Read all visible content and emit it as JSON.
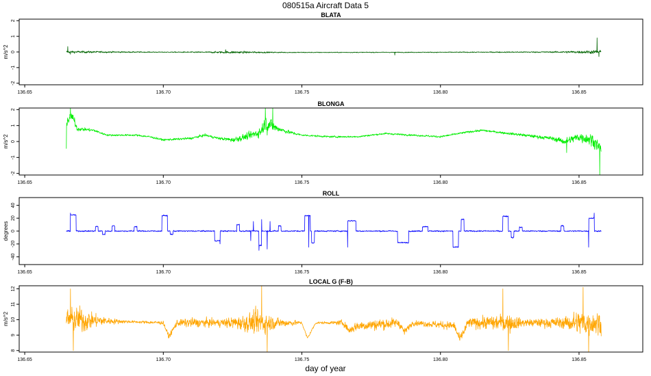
{
  "figure": {
    "title": "080515a   Aircraft Data 5",
    "xlabel": "day of year"
  },
  "chart_data": [
    {
      "type": "line",
      "title": "BLATA",
      "ylabel": "m/s^2",
      "xlim": [
        136.648,
        136.873
      ],
      "ylim": [
        -2.1,
        2.1
      ],
      "xticks": [
        "136.65",
        "136.70",
        "136.75",
        "136.80",
        "136.85"
      ],
      "yticks": [
        -2,
        -1,
        0,
        1,
        2
      ],
      "x_range": [
        136.665,
        136.858
      ],
      "color": "#006400",
      "shape": {
        "base": [
          [
            136.665,
            0.0
          ],
          [
            136.75,
            -0.03
          ],
          [
            136.8,
            -0.02
          ],
          [
            136.858,
            0.0
          ]
        ],
        "noise": [
          [
            136.665,
            0.1
          ],
          [
            136.672,
            0.08
          ],
          [
            136.685,
            0.05
          ],
          [
            136.7,
            0.03
          ],
          [
            136.715,
            0.05
          ],
          [
            136.725,
            0.1
          ],
          [
            136.74,
            0.04
          ],
          [
            136.76,
            0.03
          ],
          [
            136.785,
            0.03
          ],
          [
            136.8,
            0.03
          ],
          [
            136.84,
            0.05
          ],
          [
            136.858,
            0.15
          ]
        ],
        "spikes": [
          [
            136.6655,
            0.35
          ],
          [
            136.6665,
            -0.15
          ],
          [
            136.7225,
            0.15
          ],
          [
            136.7835,
            -0.2
          ],
          [
            136.8565,
            0.9
          ],
          [
            136.8572,
            -0.3
          ]
        ]
      }
    },
    {
      "type": "line",
      "title": "BLONGA",
      "ylabel": "m/s^2",
      "xlim": [
        136.648,
        136.873
      ],
      "ylim": [
        -2.1,
        2.1
      ],
      "xticks": [
        "136.65",
        "136.70",
        "136.75",
        "136.80",
        "136.85"
      ],
      "yticks": [
        -2,
        -1,
        0,
        1,
        2
      ],
      "x_range": [
        136.665,
        136.858
      ],
      "color": "#00ee00",
      "shape": {
        "base": [
          [
            136.665,
            1.2
          ],
          [
            136.667,
            1.6
          ],
          [
            136.669,
            0.8
          ],
          [
            136.675,
            0.7
          ],
          [
            136.678,
            0.5
          ],
          [
            136.68,
            0.4
          ],
          [
            136.69,
            0.4
          ],
          [
            136.695,
            0.3
          ],
          [
            136.7,
            0.1
          ],
          [
            136.71,
            0.2
          ],
          [
            136.715,
            0.4
          ],
          [
            136.72,
            0.2
          ],
          [
            136.725,
            0.1
          ],
          [
            136.73,
            0.3
          ],
          [
            136.735,
            0.6
          ],
          [
            136.737,
            1.2
          ],
          [
            136.74,
            0.9
          ],
          [
            136.745,
            0.6
          ],
          [
            136.75,
            0.4
          ],
          [
            136.76,
            0.3
          ],
          [
            136.77,
            0.3
          ],
          [
            136.78,
            0.5
          ],
          [
            136.79,
            0.4
          ],
          [
            136.8,
            0.3
          ],
          [
            136.81,
            0.6
          ],
          [
            136.815,
            0.7
          ],
          [
            136.82,
            0.6
          ],
          [
            136.825,
            0.5
          ],
          [
            136.83,
            0.4
          ],
          [
            136.84,
            0.2
          ],
          [
            136.845,
            0.0
          ],
          [
            136.85,
            0.3
          ],
          [
            136.855,
            0.1
          ],
          [
            136.858,
            -0.5
          ]
        ],
        "noise": [
          [
            136.665,
            0.4
          ],
          [
            136.67,
            0.15
          ],
          [
            136.68,
            0.07
          ],
          [
            136.7,
            0.08
          ],
          [
            136.72,
            0.1
          ],
          [
            136.732,
            0.3
          ],
          [
            136.738,
            0.6
          ],
          [
            136.742,
            0.2
          ],
          [
            136.75,
            0.07
          ],
          [
            136.79,
            0.07
          ],
          [
            136.82,
            0.08
          ],
          [
            136.84,
            0.15
          ],
          [
            136.855,
            0.5
          ]
        ],
        "spikes": [
          [
            136.665,
            -0.45
          ],
          [
            136.6665,
            2.1
          ],
          [
            136.668,
            1.5
          ],
          [
            136.7368,
            2.1
          ],
          [
            136.7375,
            0.4
          ],
          [
            136.7395,
            2.1
          ],
          [
            136.8455,
            -0.7
          ],
          [
            136.8575,
            -2.1
          ]
        ]
      }
    },
    {
      "type": "line",
      "title": "ROLL",
      "ylabel": "degrees",
      "xlim": [
        136.648,
        136.873
      ],
      "ylim": [
        -52,
        52
      ],
      "xticks": [
        "136.65",
        "136.70",
        "136.75",
        "136.80",
        "136.85"
      ],
      "yticks": [
        -40,
        -20,
        0,
        20,
        40
      ],
      "x_range": [
        136.665,
        136.858
      ],
      "color": "#0000ff",
      "shape": {
        "base": [
          [
            136.665,
            0.0
          ],
          [
            136.858,
            0.0
          ]
        ],
        "noise": [
          [
            136.665,
            1.2
          ],
          [
            136.858,
            1.2
          ]
        ],
        "plateaus": [
          [
            136.6665,
            136.6685,
            25
          ],
          [
            136.6755,
            136.6765,
            7
          ],
          [
            136.678,
            136.679,
            -5
          ],
          [
            136.6815,
            136.6825,
            8
          ],
          [
            136.6895,
            136.6905,
            7
          ],
          [
            136.6995,
            136.7015,
            24
          ],
          [
            136.7025,
            136.7035,
            -5
          ],
          [
            136.7185,
            136.7205,
            -15
          ],
          [
            136.7265,
            136.7275,
            10
          ],
          [
            136.7345,
            136.7355,
            -22
          ],
          [
            136.7415,
            136.7425,
            8
          ],
          [
            136.751,
            136.753,
            24
          ],
          [
            136.7535,
            136.7545,
            -18
          ],
          [
            136.7665,
            136.7695,
            16
          ],
          [
            136.7845,
            136.7885,
            -18
          ],
          [
            136.7935,
            136.7955,
            7
          ],
          [
            136.8045,
            136.8065,
            -25
          ],
          [
            136.8075,
            136.8085,
            18
          ],
          [
            136.8225,
            136.8245,
            23
          ],
          [
            136.8255,
            136.8265,
            -10
          ],
          [
            136.8285,
            136.8295,
            6
          ],
          [
            136.8435,
            136.8445,
            8
          ],
          [
            136.8535,
            136.8555,
            20
          ]
        ],
        "spikes": [
          [
            136.6665,
            28
          ],
          [
            136.7205,
            -20
          ],
          [
            136.7315,
            -15
          ],
          [
            136.7325,
            15
          ],
          [
            136.7345,
            -30
          ],
          [
            136.7355,
            18
          ],
          [
            136.7375,
            -28
          ],
          [
            136.7385,
            15
          ],
          [
            136.7525,
            -25
          ],
          [
            136.7665,
            -25
          ],
          [
            136.8535,
            -25
          ],
          [
            136.8555,
            28
          ]
        ]
      }
    },
    {
      "type": "line",
      "title": "LOCAL G (F-B)",
      "ylabel": "m/s^2",
      "xlim": [
        136.648,
        136.873
      ],
      "ylim": [
        7.9,
        12.2
      ],
      "xticks": [
        "136.65",
        "136.70",
        "136.75",
        "136.80",
        "136.85"
      ],
      "yticks": [
        8,
        9,
        10,
        11,
        12
      ],
      "x_range": [
        136.665,
        136.858
      ],
      "color": "#ffa500",
      "shape": {
        "base": [
          [
            136.665,
            10.0
          ],
          [
            136.7,
            9.8
          ],
          [
            136.702,
            8.9
          ],
          [
            136.705,
            9.8
          ],
          [
            136.75,
            9.8
          ],
          [
            136.752,
            8.8
          ],
          [
            136.755,
            9.8
          ],
          [
            136.765,
            9.8
          ],
          [
            136.767,
            9.3
          ],
          [
            136.77,
            9.6
          ],
          [
            136.785,
            9.8
          ],
          [
            136.787,
            9.2
          ],
          [
            136.79,
            9.8
          ],
          [
            136.805,
            9.6
          ],
          [
            136.807,
            8.7
          ],
          [
            136.81,
            9.8
          ],
          [
            136.858,
            9.8
          ]
        ],
        "noise": [
          [
            136.665,
            1.0
          ],
          [
            136.67,
            1.1
          ],
          [
            136.675,
            0.6
          ],
          [
            136.68,
            0.3
          ],
          [
            136.685,
            0.15
          ],
          [
            136.69,
            0.1
          ],
          [
            136.7,
            0.15
          ],
          [
            136.71,
            0.4
          ],
          [
            136.72,
            0.3
          ],
          [
            136.73,
            0.7
          ],
          [
            136.735,
            1.1
          ],
          [
            136.74,
            0.5
          ],
          [
            136.745,
            0.3
          ],
          [
            136.75,
            0.1
          ],
          [
            136.76,
            0.1
          ],
          [
            136.77,
            0.4
          ],
          [
            136.78,
            0.5
          ],
          [
            136.79,
            0.2
          ],
          [
            136.8,
            0.3
          ],
          [
            136.81,
            0.4
          ],
          [
            136.82,
            0.6
          ],
          [
            136.825,
            0.8
          ],
          [
            136.83,
            0.3
          ],
          [
            136.84,
            0.4
          ],
          [
            136.845,
            0.5
          ],
          [
            136.85,
            1.1
          ],
          [
            136.858,
            0.9
          ]
        ],
        "spikes": [
          [
            136.6665,
            12.0
          ],
          [
            136.6675,
            8.0
          ],
          [
            136.7355,
            12.2
          ],
          [
            136.7375,
            7.9
          ],
          [
            136.8225,
            12.0
          ],
          [
            136.8245,
            8.0
          ],
          [
            136.8515,
            12.1
          ],
          [
            136.8535,
            7.9
          ]
        ]
      }
    }
  ]
}
